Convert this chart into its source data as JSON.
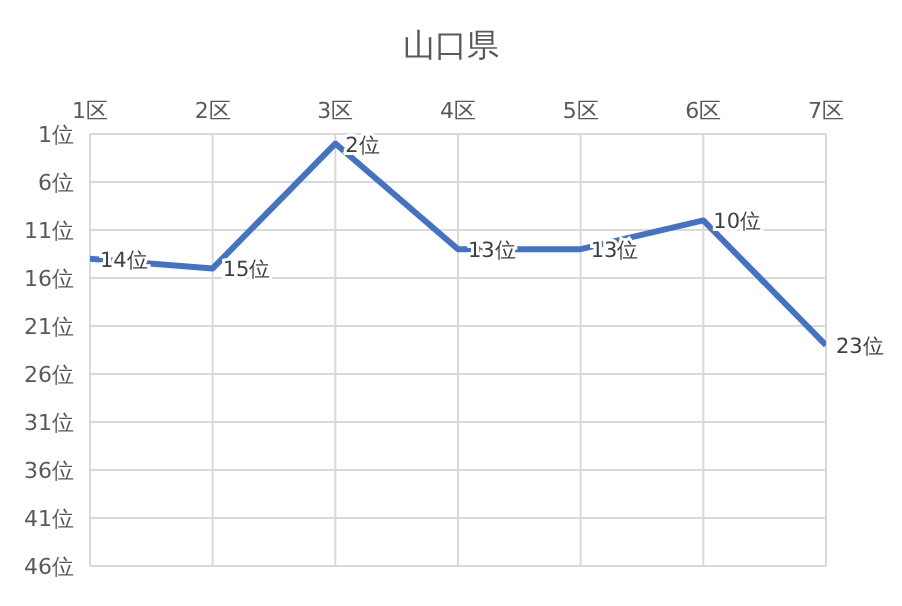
{
  "chart_data": {
    "type": "line",
    "title": "山口県",
    "categories": [
      "1区",
      "2区",
      "3区",
      "4区",
      "5区",
      "6区",
      "7区"
    ],
    "series": [
      {
        "color": "#4472c4",
        "values": [
          14,
          15,
          2,
          13,
          13,
          10,
          23
        ],
        "value_labels": [
          "14位",
          "15位",
          "2位",
          "13位",
          "13位",
          "10位",
          "23位"
        ]
      }
    ],
    "ylim": [
      46,
      1
    ],
    "yticks": [
      {
        "value": 1,
        "label": "1位"
      },
      {
        "value": 6,
        "label": "6位"
      },
      {
        "value": 11,
        "label": "11位"
      },
      {
        "value": 16,
        "label": "16位"
      },
      {
        "value": 21,
        "label": "21位"
      },
      {
        "value": 26,
        "label": "26位"
      },
      {
        "value": 31,
        "label": "31位"
      },
      {
        "value": 36,
        "label": "36位"
      },
      {
        "value": 41,
        "label": "41位"
      },
      {
        "value": 46,
        "label": "46位"
      }
    ],
    "grid": true,
    "legend": false,
    "marker": "none",
    "line_style": "solid"
  }
}
